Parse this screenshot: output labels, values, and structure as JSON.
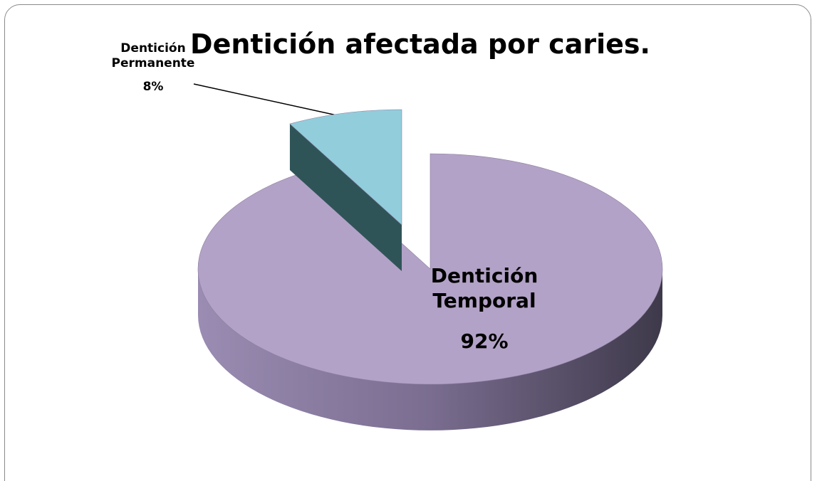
{
  "chart_data": {
    "type": "pie",
    "title": "Dentición afectada por caries.",
    "categories": [
      "Dentición Permanente",
      "Dentición Temporal"
    ],
    "values": [
      8,
      92
    ],
    "value_labels": [
      "8%",
      "92%"
    ],
    "colors": [
      "#92cddc",
      "#b3a2c7"
    ]
  }
}
